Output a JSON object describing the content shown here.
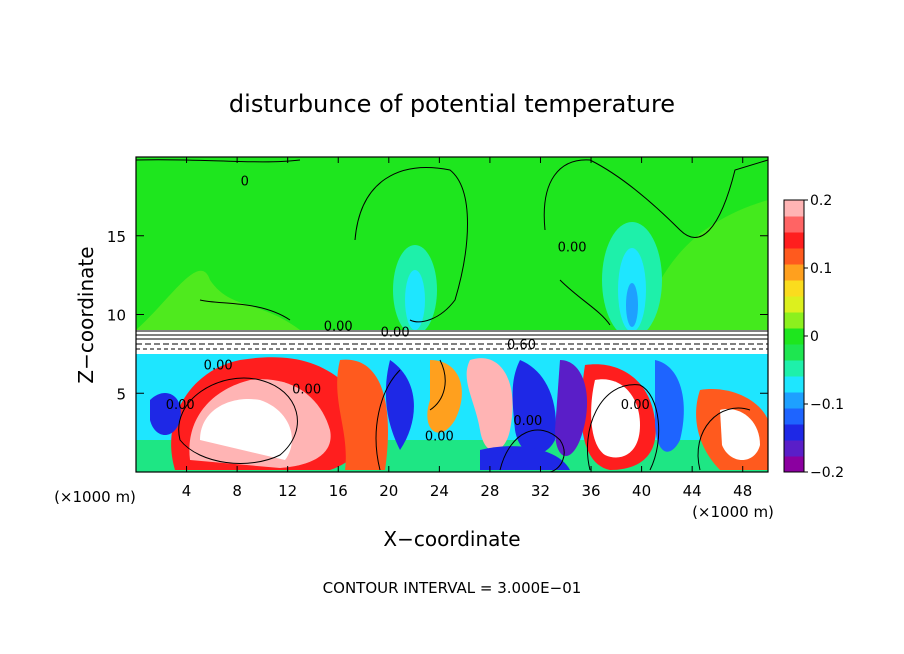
{
  "chart_data": {
    "type": "heatmap",
    "title": "disturbunce of potential temperature",
    "xlabel": "X−coordinate",
    "ylabel": "Z−coordinate",
    "x_unit_left": "(×1000 m)",
    "x_unit_right": "(×1000 m)",
    "footer": "CONTOUR INTERVAL = 3.000E−01",
    "xlim": [
      0,
      50
    ],
    "ylim": [
      0,
      20
    ],
    "x_ticks": [
      4,
      8,
      12,
      16,
      20,
      24,
      28,
      32,
      36,
      40,
      44,
      48
    ],
    "y_ticks": [
      5,
      10,
      15
    ],
    "grid": false,
    "colorbar": {
      "min": -0.2,
      "max": 0.2,
      "tick_values": [
        0.2,
        0.1,
        0,
        -0.1,
        -0.2
      ],
      "tick_labels": [
        "0.2",
        "0.1",
        "0",
        "−0.1",
        "−0.2"
      ],
      "colors": [
        "#8b00a0",
        "#5a1ec8",
        "#1e28e6",
        "#1e64ff",
        "#1ea0ff",
        "#1ee6ff",
        "#1ef0aa",
        "#1ee650",
        "#1ee61e",
        "#8cf01e",
        "#dcf01e",
        "#fadc1e",
        "#ffa01e",
        "#ff5a1e",
        "#ff1e1e",
        "#ff6464",
        "#ffb4b4"
      ]
    },
    "contour_labels": [
      {
        "text": "0",
        "x": 8.6,
        "y": 18.2
      },
      {
        "text": "0.00",
        "x": 34.5,
        "y": 14.0
      },
      {
        "text": "0.00",
        "x": 16.0,
        "y": 9.0
      },
      {
        "text": "0.00",
        "x": 20.5,
        "y": 8.6
      },
      {
        "text": "0.60",
        "x": 30.5,
        "y": 7.8
      },
      {
        "text": "0.00",
        "x": 6.5,
        "y": 6.5
      },
      {
        "text": "0.00",
        "x": 13.5,
        "y": 5.0
      },
      {
        "text": "0.00",
        "x": 39.5,
        "y": 4.0
      },
      {
        "text": "0.00",
        "x": 24.0,
        "y": 2.0
      },
      {
        "text": "0.00",
        "x": 31.0,
        "y": 3.0
      },
      {
        "text": "0.00",
        "x": 3.5,
        "y": 4.0
      }
    ]
  }
}
